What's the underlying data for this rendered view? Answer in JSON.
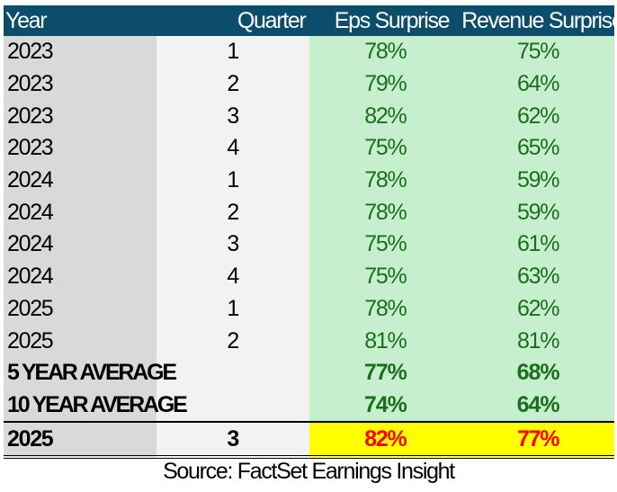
{
  "chart_data": {
    "type": "table",
    "columns": [
      "Year",
      "Quarter",
      "Eps Surprise",
      "Revenue Surprise"
    ],
    "rows": [
      [
        "2023",
        "1",
        "78%",
        "75%"
      ],
      [
        "2023",
        "2",
        "79%",
        "64%"
      ],
      [
        "2023",
        "3",
        "82%",
        "62%"
      ],
      [
        "2023",
        "4",
        "75%",
        "65%"
      ],
      [
        "2024",
        "1",
        "78%",
        "59%"
      ],
      [
        "2024",
        "2",
        "78%",
        "59%"
      ],
      [
        "2024",
        "3",
        "75%",
        "61%"
      ],
      [
        "2024",
        "4",
        "75%",
        "63%"
      ],
      [
        "2025",
        "1",
        "78%",
        "62%"
      ],
      [
        "2025",
        "2",
        "81%",
        "81%"
      ]
    ],
    "averages": [
      [
        "5 YEAR AVERAGE",
        "",
        "77%",
        "68%"
      ],
      [
        "10 YEAR AVERAGE",
        "",
        "74%",
        "64%"
      ]
    ],
    "highlight_row": [
      "2025",
      "3",
      "82%",
      "77%"
    ],
    "source": "Source: FactSet Earnings Insight",
    "colors": {
      "header": "#0b4d6b",
      "value_fill": "#c6efce",
      "value_text": "#1b6e1b",
      "highlight_fill": "#ffff00",
      "highlight_text": "#ff0000"
    }
  }
}
